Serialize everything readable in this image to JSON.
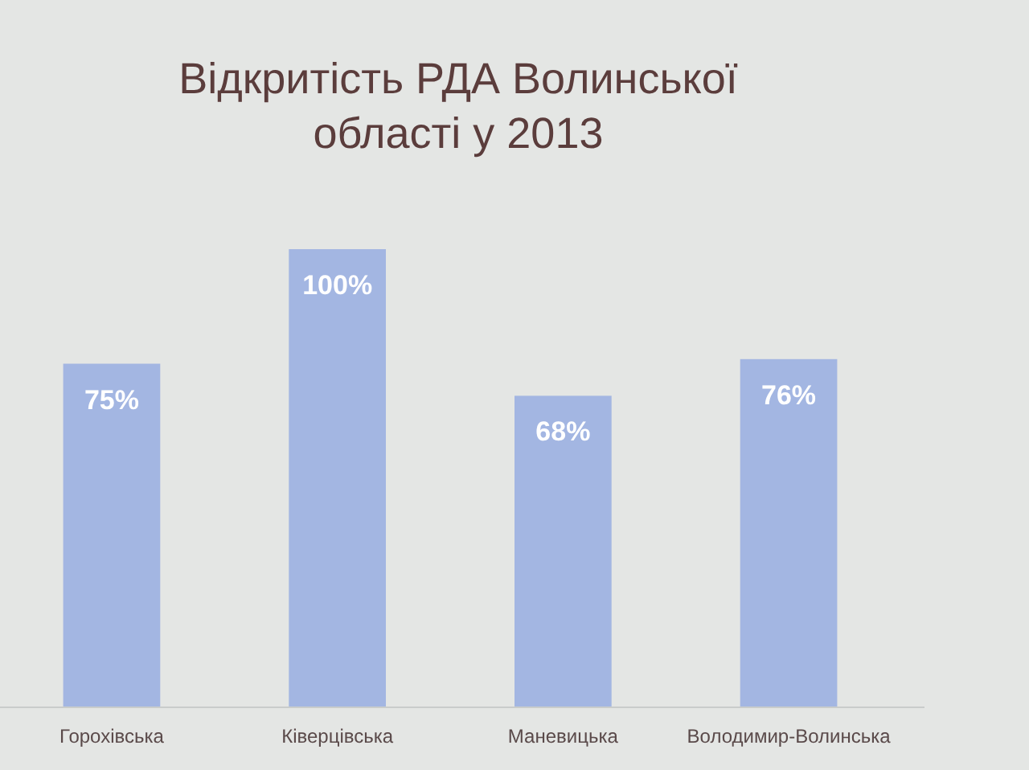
{
  "chart_data": {
    "type": "bar",
    "title": "Відкритість РДА Волинської області у 2013",
    "categories": [
      "Горохівська",
      "Ківерцівська",
      "Маневицька",
      "Володимир-Волинська"
    ],
    "values": [
      75,
      100,
      68,
      76
    ],
    "value_labels": [
      "75%",
      "100%",
      "68%",
      "76%"
    ],
    "color": "#a3b6e2"
  }
}
